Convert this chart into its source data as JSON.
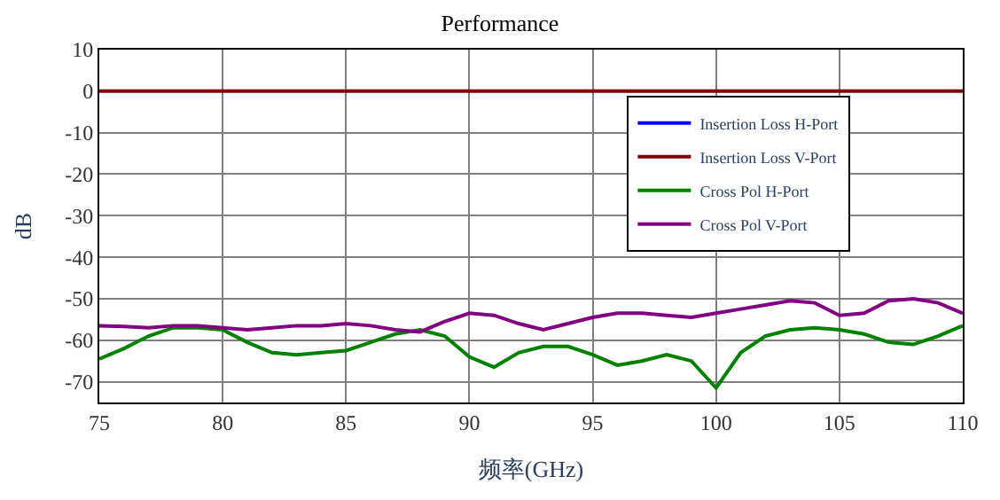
{
  "chart_data": {
    "type": "line",
    "title": "Performance",
    "xlabel": "频率(GHz)",
    "ylabel": "dB",
    "x": [
      75,
      76,
      77,
      78,
      79,
      80,
      81,
      82,
      83,
      84,
      85,
      86,
      87,
      88,
      89,
      90,
      91,
      92,
      93,
      94,
      95,
      96,
      97,
      98,
      99,
      100,
      101,
      102,
      103,
      104,
      105,
      106,
      107,
      108,
      109,
      110
    ],
    "series": [
      {
        "name": "Insertion Loss H-Port",
        "color": "#0000ff",
        "values": [
          null,
          null,
          null,
          null,
          null,
          null,
          null,
          null,
          null,
          null,
          null,
          null,
          null,
          null,
          null,
          null,
          null,
          null,
          null,
          null,
          null,
          null,
          null,
          null,
          null,
          null,
          null,
          null,
          null,
          null,
          null,
          null,
          null,
          null,
          null,
          null
        ]
      },
      {
        "name": "Insertion Loss V-Port",
        "color": "#800000",
        "values": [
          0,
          0,
          0,
          0,
          0,
          0,
          0,
          0,
          0,
          0,
          0,
          0,
          0,
          0,
          0,
          0,
          0,
          0,
          0,
          0,
          0,
          0,
          0,
          0,
          0,
          0,
          0,
          0,
          0,
          0,
          0,
          0,
          0,
          0,
          0,
          0
        ]
      },
      {
        "name": "Cross Pol H-Port",
        "color": "#008000",
        "values": [
          -64.5,
          -62,
          -59,
          -57,
          -57,
          -57.5,
          -60.5,
          -63,
          -63.5,
          -63,
          -62.5,
          -60.5,
          -58.5,
          -57.5,
          -59,
          -64,
          -66.5,
          -63,
          -61.5,
          -61.5,
          -63.5,
          -66,
          -65,
          -63.5,
          -65,
          -71.5,
          -63,
          -59,
          -57.5,
          -57,
          -57.5,
          -58.5,
          -60.5,
          -61,
          -59,
          -56.5
        ]
      },
      {
        "name": "Cross Pol V-Port",
        "color": "#800080",
        "values": [
          -56.5,
          -56.7,
          -57,
          -56.5,
          -56.5,
          -57,
          -57.5,
          -57,
          -56.5,
          -56.5,
          -56,
          -56.5,
          -57.5,
          -58,
          -55.5,
          -53.5,
          -54,
          -56,
          -57.5,
          -56,
          -54.5,
          -53.5,
          -53.5,
          -54,
          -54.5,
          -53.5,
          -52.5,
          -51.5,
          -50.5,
          -51,
          -54,
          -53.5,
          -50.5,
          -50,
          -51,
          -53.5
        ]
      }
    ],
    "xlim": [
      75,
      110
    ],
    "xticks": [
      75,
      80,
      85,
      90,
      95,
      100,
      105,
      110
    ],
    "ylim": [
      -75,
      10
    ],
    "yticks": [
      -70,
      -60,
      -50,
      -40,
      -30,
      -20,
      -10,
      0,
      10
    ],
    "grid": true,
    "legend": "top right",
    "marker": "none",
    "line_style": "solid"
  }
}
